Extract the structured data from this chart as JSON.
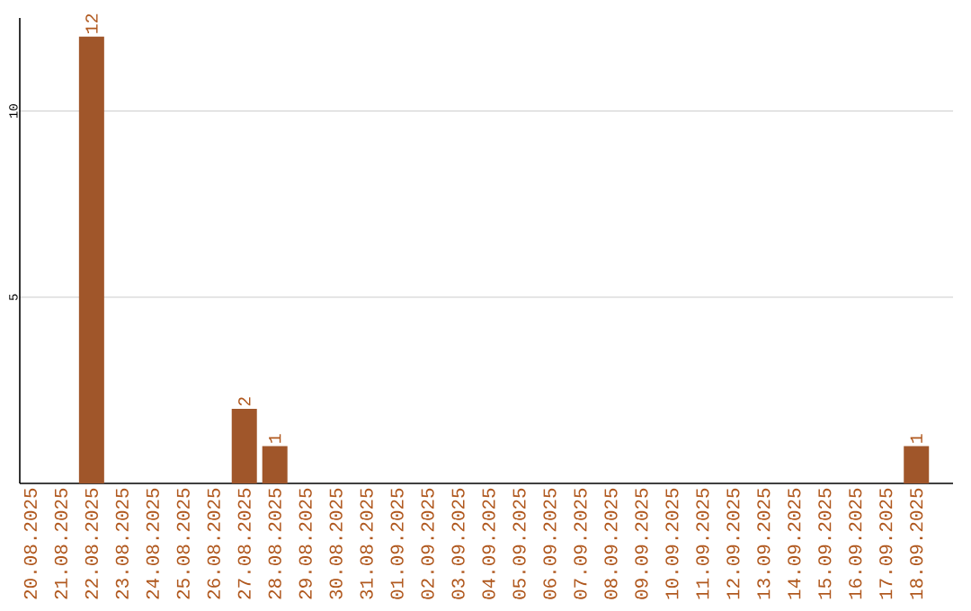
{
  "chart_data": {
    "type": "bar",
    "categories": [
      "20.08.2025",
      "21.08.2025",
      "22.08.2025",
      "23.08.2025",
      "24.08.2025",
      "25.08.2025",
      "26.08.2025",
      "27.08.2025",
      "28.08.2025",
      "29.08.2025",
      "30.08.2025",
      "31.08.2025",
      "01.09.2025",
      "02.09.2025",
      "03.09.2025",
      "04.09.2025",
      "05.09.2025",
      "06.09.2025",
      "07.09.2025",
      "08.09.2025",
      "09.09.2025",
      "10.09.2025",
      "11.09.2025",
      "12.09.2025",
      "13.09.2025",
      "14.09.2025",
      "15.09.2025",
      "16.09.2025",
      "17.09.2025",
      "18.09.2025"
    ],
    "values": [
      0,
      0,
      12,
      0,
      0,
      0,
      0,
      2,
      1,
      0,
      0,
      0,
      0,
      0,
      0,
      0,
      0,
      0,
      0,
      0,
      0,
      0,
      0,
      0,
      0,
      0,
      0,
      0,
      0,
      1
    ],
    "value_labels": [
      null,
      null,
      "12",
      null,
      null,
      null,
      null,
      "2",
      "1",
      null,
      null,
      null,
      null,
      null,
      null,
      null,
      null,
      null,
      null,
      null,
      null,
      null,
      null,
      null,
      null,
      null,
      null,
      null,
      null,
      "1"
    ],
    "color": "#a0562a",
    "ylim": [
      0,
      12.5
    ],
    "yticks": [
      5,
      10
    ],
    "grid": "y"
  }
}
